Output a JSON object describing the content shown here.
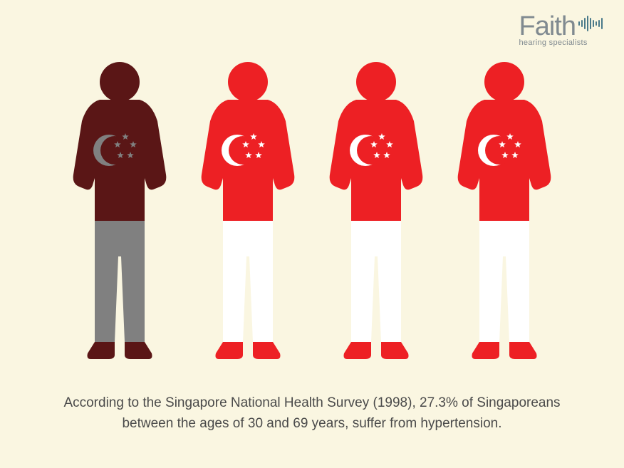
{
  "infographic": {
    "type": "infographic",
    "background_color": "#faf6e1",
    "figure_count": 4,
    "affected_index": 0,
    "figures": [
      {
        "body_color": "#5a1616",
        "pants_color": "#808080",
        "shoe_color": "#5a1616",
        "flag_bg": "#5a1616",
        "flag_symbol_color": "#808080"
      },
      {
        "body_color": "#ed2024",
        "pants_color": "#ffffff",
        "shoe_color": "#ed2024",
        "flag_bg": "#ed2024",
        "flag_symbol_color": "#ffffff"
      },
      {
        "body_color": "#ed2024",
        "pants_color": "#ffffff",
        "shoe_color": "#ed2024",
        "flag_bg": "#ed2024",
        "flag_symbol_color": "#ffffff"
      },
      {
        "body_color": "#ed2024",
        "pants_color": "#ffffff",
        "shoe_color": "#ed2024",
        "flag_bg": "#ed2024",
        "flag_symbol_color": "#ffffff"
      }
    ],
    "caption_text": "According to the Singapore National Health Survey (1998), 27.3% of Singaporeans between the ages of 30 and 69 years, suffer from hypertension.",
    "caption_color": "#4a4a4a",
    "caption_fontsize": 19
  },
  "logo": {
    "brand": "Faith",
    "tagline": "hearing specialists",
    "text_color": "#808a90",
    "wave_color": "#4a7a8a",
    "wave_heights": [
      6,
      10,
      16,
      22,
      16,
      10,
      6,
      10,
      16
    ]
  }
}
